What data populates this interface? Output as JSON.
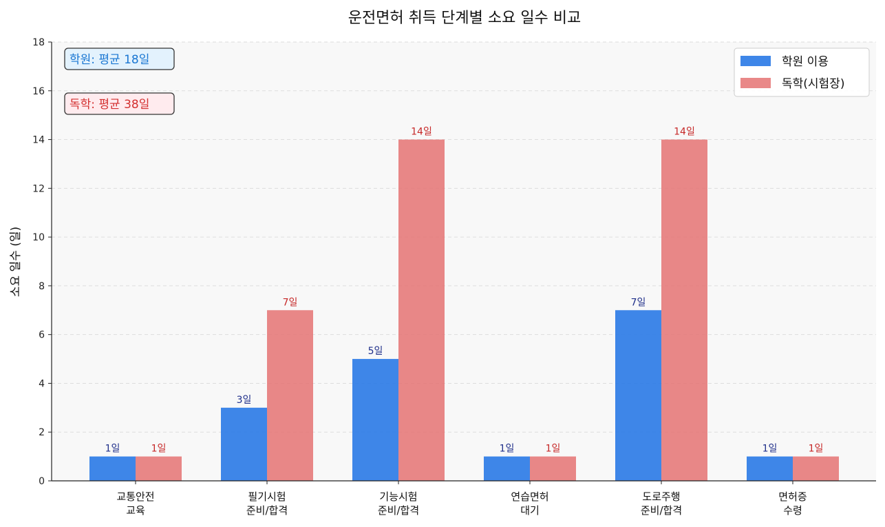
{
  "chart_data": {
    "type": "bar",
    "title": "운전면허 취득 단계별 소요 일수 비교",
    "xlabel": "",
    "ylabel": "소요 일수 (일)",
    "ylim": [
      0,
      18
    ],
    "yticks": [
      0,
      2,
      4,
      6,
      8,
      10,
      12,
      14,
      16,
      18
    ],
    "grid": "y-dashed",
    "legend_placement": "top-right",
    "categories": [
      "교통안전\n교육",
      "필기시험\n준비/합격",
      "기능시험\n준비/합격",
      "연습면허\n대기",
      "도로주행\n준비/합격",
      "면허증\n수령"
    ],
    "series": [
      {
        "name": "학원 이용",
        "color": "#2979e6",
        "label_color": "#1f2f8a",
        "values": [
          1,
          3,
          5,
          1,
          7,
          1
        ],
        "labels": [
          "1일",
          "3일",
          "5일",
          "1일",
          "7일",
          "1일"
        ]
      },
      {
        "name": "독학(시험장)",
        "color": "#e57373",
        "label_color": "#c62828",
        "values": [
          1,
          7,
          14,
          1,
          14,
          1
        ],
        "labels": [
          "1일",
          "7일",
          "14일",
          "1일",
          "14일",
          "1일"
        ]
      }
    ],
    "annotations": [
      {
        "text": "학원: 평균 18일",
        "color": "#1976d2",
        "bg": "#e3f2fd"
      },
      {
        "text": "독학: 평균 38일",
        "color": "#d32f2f",
        "bg": "#ffebee"
      }
    ]
  }
}
